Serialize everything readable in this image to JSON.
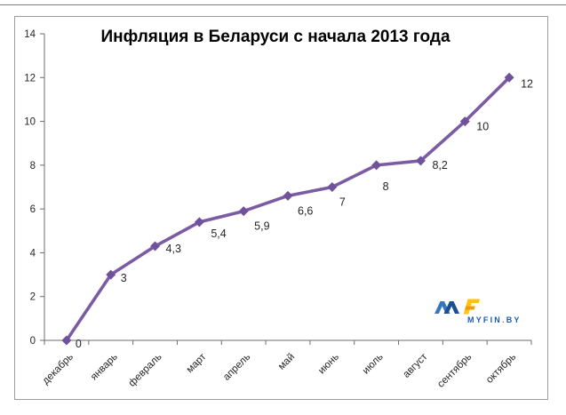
{
  "chart_data": {
    "type": "line",
    "title": "Инфляция в Беларуси с начала 2013 года",
    "categories": [
      "декабрь",
      "январь",
      "февраль",
      "март",
      "апрель",
      "май",
      "июнь",
      "июль",
      "август",
      "сентябрь",
      "октябрь"
    ],
    "values": [
      0,
      3,
      4.3,
      5.4,
      5.9,
      6.6,
      7,
      8,
      8.2,
      10,
      12
    ],
    "value_labels": [
      "0",
      "3",
      "4,3",
      "5,4",
      "5,9",
      "6,6",
      "7",
      "8",
      "8,2",
      "10",
      "12"
    ],
    "ylim": [
      0,
      14
    ],
    "y_ticks": [
      0,
      2,
      4,
      6,
      8,
      10,
      12,
      14
    ],
    "grid": false,
    "legend": "none",
    "xlabel": "",
    "ylabel": "",
    "marker": "diamond",
    "series_color": "#7B5BA4",
    "marker_color": "#6F519C",
    "axis_color": "#6E6E6E",
    "label_color": "#262626"
  },
  "watermark": {
    "text_main": "MYFIN",
    "text_dot": ".",
    "text_tld": "BY",
    "blue": "#1A5DAD",
    "light_blue": "#3876BE",
    "dark_blue": "#1C4E94",
    "yellow": "#FFC20E",
    "orange": "#F59B00",
    "dot_color": "#E94E1B"
  }
}
